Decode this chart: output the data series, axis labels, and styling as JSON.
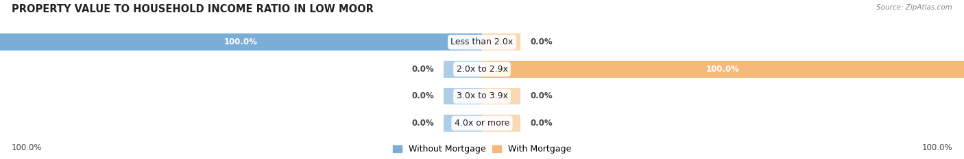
{
  "title": "PROPERTY VALUE TO HOUSEHOLD INCOME RATIO IN LOW MOOR",
  "source": "Source: ZipAtlas.com",
  "categories": [
    "Less than 2.0x",
    "2.0x to 2.9x",
    "3.0x to 3.9x",
    "4.0x or more"
  ],
  "without_mortgage": [
    100.0,
    0.0,
    0.0,
    0.0
  ],
  "with_mortgage": [
    0.0,
    100.0,
    0.0,
    0.0
  ],
  "color_without": "#7aaed6",
  "color_with": "#f5b97a",
  "color_without_pale": "#aecde8",
  "color_with_pale": "#f9d9b3",
  "bg_bar_odd": "#ededf2",
  "bg_bar_even": "#e4e4ec",
  "bar_height": 0.62,
  "title_fontsize": 10.5,
  "label_fontsize": 8.5,
  "legend_fontsize": 9,
  "cat_fontsize": 9,
  "xlim": [
    -100,
    100
  ],
  "stub_size": 8
}
